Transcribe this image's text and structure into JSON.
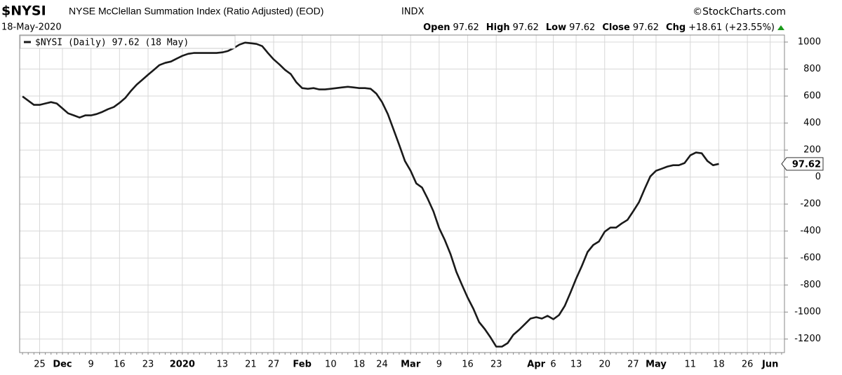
{
  "chart_data": {
    "type": "line",
    "title": "$NYSI",
    "subtitle": "NYSE McClellan Summation Index (Ratio Adjusted) (EOD)",
    "exchange": "INDX",
    "source": "©StockCharts.com",
    "date": "18-May-2020",
    "quote": [
      [
        "Open",
        "97.62"
      ],
      [
        "High",
        "97.62"
      ],
      [
        "Low",
        "97.62"
      ],
      [
        "Close",
        "97.62"
      ],
      [
        "Chg",
        "+18.61 (+23.55%)"
      ]
    ],
    "categories": [
      null,
      null,
      null,
      "25",
      null,
      null,
      null,
      "Dec",
      null,
      null,
      null,
      null,
      "9",
      null,
      null,
      null,
      null,
      "16",
      null,
      null,
      null,
      null,
      "23",
      null,
      null,
      null,
      null,
      null,
      "2020",
      null,
      null,
      null,
      null,
      null,
      null,
      "13",
      null,
      null,
      null,
      null,
      "21",
      null,
      null,
      null,
      "27",
      null,
      null,
      null,
      null,
      "Feb",
      null,
      null,
      null,
      null,
      "10",
      null,
      null,
      null,
      null,
      "18",
      null,
      null,
      null,
      "24",
      null,
      null,
      null,
      null,
      "Mar",
      null,
      null,
      null,
      null,
      "9",
      null,
      null,
      null,
      null,
      "16",
      null,
      null,
      null,
      null,
      "23",
      null,
      null,
      null,
      null,
      null,
      null,
      "Apr",
      null,
      null,
      "6",
      null,
      null,
      null,
      "13",
      null,
      null,
      null,
      null,
      "20",
      null,
      null,
      null,
      null,
      "27",
      null,
      null,
      null,
      "May",
      null,
      null,
      null,
      null,
      null,
      "11",
      null,
      null,
      null,
      null,
      "18",
      null,
      null,
      null,
      null,
      "26",
      null,
      null,
      null,
      "Jun",
      null,
      null
    ],
    "series": [
      {
        "name": "$NYSI (Daily) 97.62 (18 May)",
        "color": "#1a1a1a",
        "values": [
          597,
          566,
          535,
          535,
          545,
          555,
          545,
          509,
          472,
          457,
          441,
          457,
          457,
          467,
          483,
          503,
          519,
          550,
          586,
          638,
          685,
          721,
          758,
          794,
          830,
          846,
          856,
          877,
          898,
          913,
          919,
          919,
          919,
          919,
          919,
          924,
          934,
          955,
          981,
          996,
          991,
          986,
          970,
          919,
          872,
          835,
          794,
          763,
          701,
          659,
          654,
          659,
          649,
          649,
          654,
          659,
          664,
          669,
          664,
          659,
          659,
          654,
          618,
          555,
          467,
          353,
          239,
          119,
          47,
          -47,
          -78,
          -161,
          -254,
          -379,
          -467,
          -571,
          -701,
          -799,
          -893,
          -976,
          -1074,
          -1126,
          -1188,
          -1256,
          -1256,
          -1230,
          -1168,
          -1131,
          -1090,
          -1048,
          -1038,
          -1048,
          -1028,
          -1053,
          -1022,
          -955,
          -856,
          -752,
          -659,
          -555,
          -503,
          -477,
          -405,
          -374,
          -374,
          -343,
          -317,
          -254,
          -187,
          -88,
          5,
          47,
          62,
          78,
          88,
          88,
          104,
          161,
          182,
          176,
          119,
          88,
          97.62,
          null,
          null,
          null,
          null,
          null,
          null,
          null,
          null,
          null,
          null,
          null
        ]
      }
    ],
    "ylim": [
      -1300,
      1052
    ],
    "yticks": [
      1000,
      800,
      600,
      400,
      200,
      0,
      -200,
      -400,
      -600,
      -800,
      -1000,
      -1200
    ],
    "grid": true
  }
}
